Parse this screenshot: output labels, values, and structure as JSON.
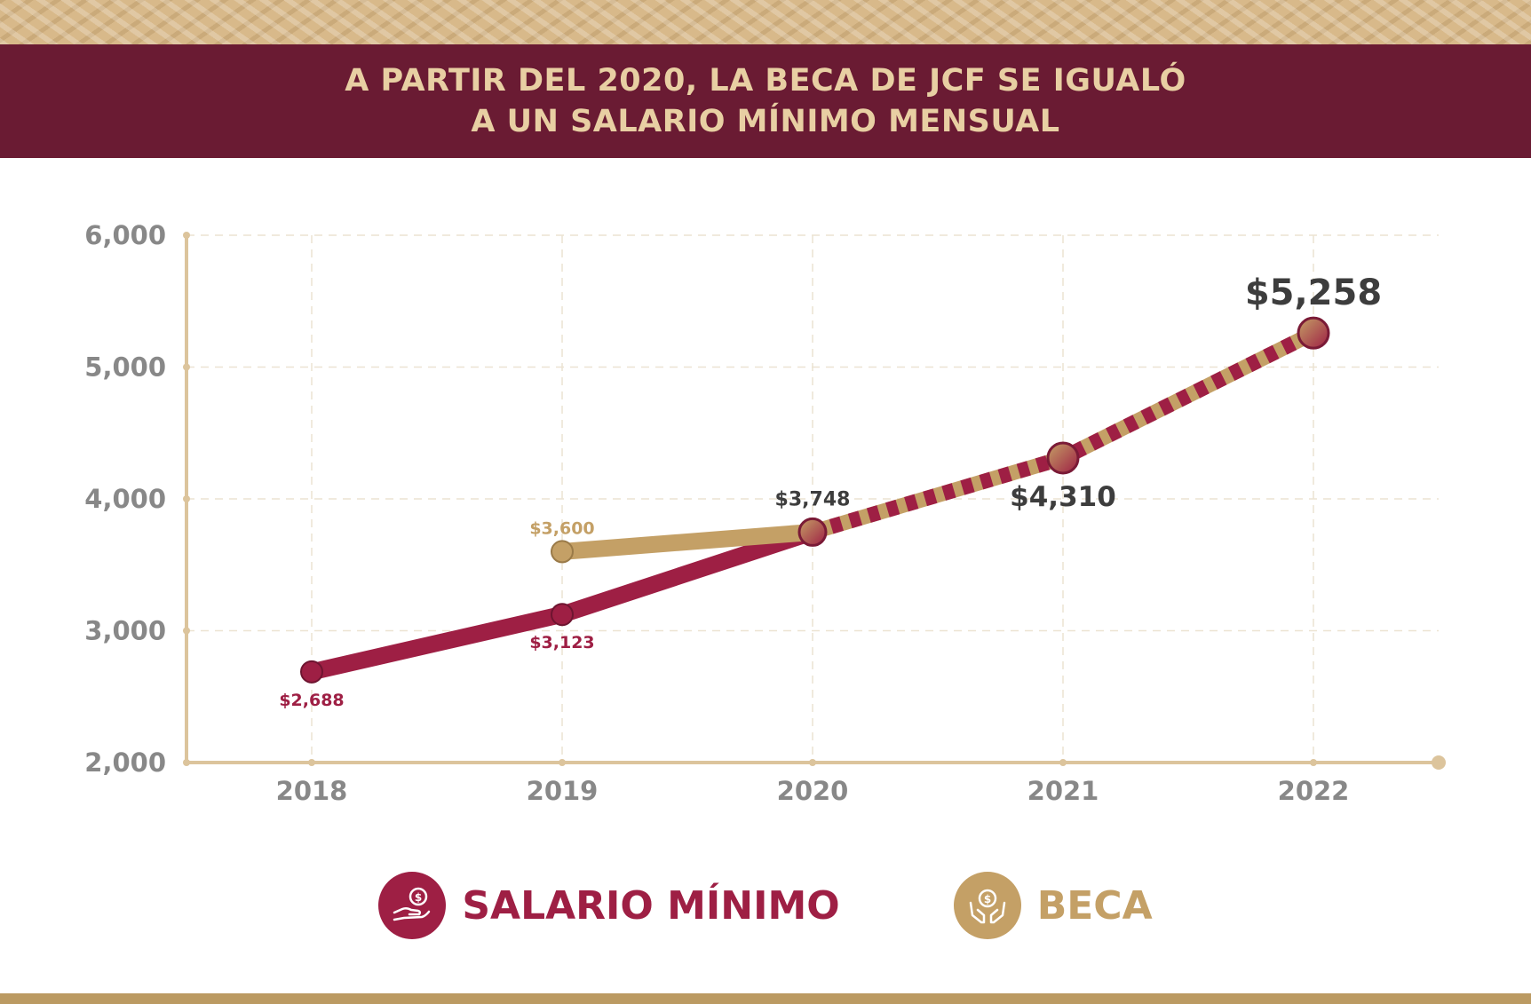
{
  "header": {
    "title_line1": "A PARTIR DEL 2020, LA BECA DE JCF SE IGUALÓ",
    "title_line2": "A UN SALARIO MÍNIMO MENSUAL"
  },
  "colors": {
    "maroon": "#9e1f44",
    "gold": "#c4a066",
    "title_band": "#6a1b33",
    "title_text": "#e8cfa3",
    "axis": "#dcc49c",
    "grid": "#ece3d2",
    "tick_text": "#888888",
    "dark_label": "#3d3d3d"
  },
  "chart_data": {
    "type": "line",
    "categories": [
      "2018",
      "2019",
      "2020",
      "2021",
      "2022"
    ],
    "yticks": [
      "2,000",
      "3,000",
      "4,000",
      "5,000",
      "6,000"
    ],
    "ylim": [
      2000,
      6000
    ],
    "grid": true,
    "series": [
      {
        "name": "SALARIO MÍNIMO",
        "values": [
          2688,
          3123,
          3748,
          4310,
          5258
        ],
        "color": "#9e1f44",
        "labels": [
          "$2,688",
          "$3,123",
          "",
          "",
          ""
        ]
      },
      {
        "name": "BECA",
        "values": [
          null,
          3600,
          3748,
          4310,
          5258
        ],
        "color": "#c4a066",
        "labels": [
          "",
          "$3,600",
          "",
          "",
          ""
        ]
      }
    ],
    "shared_labels": [
      {
        "x": "2020",
        "value": 3748,
        "label": "$3,748"
      },
      {
        "x": "2021",
        "value": 4310,
        "label": "$4,310"
      },
      {
        "x": "2022",
        "value": 5258,
        "label": "$5,258"
      }
    ],
    "legend": [
      {
        "label": "SALARIO MÍNIMO",
        "icon": "hand-money-icon",
        "color": "#9e1f44"
      },
      {
        "label": "BECA",
        "icon": "hands-coin-icon",
        "color": "#c4a066"
      }
    ],
    "legend_position": "bottom"
  }
}
